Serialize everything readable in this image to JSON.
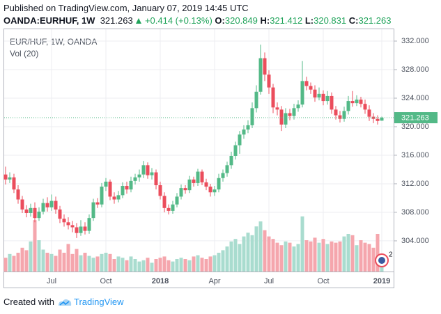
{
  "header": {
    "published": "Published on TradingView.com, January 07, 2019 14:45 UTC",
    "symbol": "OANDA:EURHUF, 1W",
    "change": "+0.414 (+0.13%)",
    "open_label": "O:",
    "high_label": "H:",
    "low_label": "L:",
    "close_label": "C:"
  },
  "footer": {
    "created": "Created with",
    "brand": "TradingView"
  },
  "chart_data": {
    "type": "candlestick",
    "title": "EUR/HUF, 1W, OANDA",
    "volume_title": "Vol (20)",
    "badge": "2",
    "up_color": "#53b987",
    "down_color": "#eb4d5c",
    "up_volume_color": "#a9dccf",
    "down_volume_color": "#f5a6ad",
    "categories": [
      null,
      null,
      null,
      null,
      null,
      null,
      null,
      null,
      null,
      null,
      null,
      "Jul",
      null,
      null,
      null,
      null,
      null,
      null,
      null,
      null,
      null,
      null,
      null,
      null,
      "Oct",
      null,
      null,
      null,
      null,
      null,
      null,
      null,
      null,
      null,
      null,
      null,
      null,
      "2018",
      null,
      null,
      null,
      null,
      null,
      null,
      null,
      null,
      null,
      null,
      null,
      null,
      "Apr",
      null,
      null,
      null,
      null,
      null,
      null,
      null,
      null,
      null,
      null,
      null,
      null,
      "Jul",
      null,
      null,
      null,
      null,
      null,
      null,
      null,
      null,
      null,
      null,
      null,
      null,
      "Oct",
      null,
      null,
      null,
      null,
      null,
      null,
      null,
      null,
      null,
      null,
      null,
      null,
      null,
      "2019"
    ],
    "open": [
      313.3,
      312.6,
      312.9,
      311.2,
      309.8,
      308.4,
      307.9,
      308.6,
      307.2,
      308.1,
      309.3,
      308.7,
      309.6,
      308.4,
      307.1,
      306.6,
      306.2,
      305.9,
      305.1,
      306.0,
      305.4,
      307.2,
      309.4,
      309.1,
      311.6,
      312.3,
      310.2,
      309.8,
      310.4,
      311.7,
      311.2,
      312.4,
      312.9,
      313.3,
      314.6,
      313.2,
      313.6,
      311.8,
      310.3,
      308.6,
      308.2,
      309.1,
      310.2,
      311.4,
      311.1,
      312.6,
      312.1,
      313.7,
      312.2,
      311.6,
      310.8,
      311.2,
      312.8,
      313.5,
      314.6,
      315.9,
      317.4,
      318.9,
      319.6,
      320.2,
      322.6,
      324.9,
      329.6,
      327.3,
      325.5,
      322.7,
      322.4,
      320.3,
      321.9,
      321.5,
      322.6,
      323.1,
      326.4,
      325.7,
      325.2,
      324.1,
      324.6,
      323.6,
      324.3,
      322.4,
      321.6,
      321.1,
      322.2,
      323.6,
      323.3,
      323.8,
      323.2,
      322.4,
      321.4,
      321.1,
      320.849
    ],
    "high": [
      314.4,
      313.6,
      313.4,
      311.8,
      310.3,
      309.0,
      309.2,
      309.4,
      308.7,
      309.9,
      310.1,
      310.5,
      310.2,
      308.9,
      307.7,
      307.3,
      306.8,
      306.5,
      306.9,
      306.6,
      307.7,
      309.9,
      310.0,
      312.1,
      312.8,
      312.6,
      310.8,
      311.0,
      312.2,
      312.3,
      313.0,
      313.4,
      314.0,
      315.2,
      315.0,
      314.2,
      314.0,
      312.3,
      310.8,
      309.1,
      309.6,
      310.7,
      311.9,
      311.8,
      313.1,
      313.0,
      314.1,
      314.0,
      312.7,
      312.0,
      311.7,
      313.4,
      314.0,
      315.1,
      316.5,
      317.9,
      319.4,
      320.2,
      320.9,
      323.4,
      325.8,
      331.5,
      330.4,
      327.9,
      326.0,
      323.4,
      322.9,
      322.6,
      322.5,
      323.2,
      323.7,
      329.2,
      327.0,
      326.2,
      325.8,
      325.5,
      325.1,
      325.0,
      324.8,
      322.9,
      322.2,
      322.8,
      324.3,
      325.0,
      324.4,
      324.2,
      323.8,
      323.0,
      321.9,
      321.6,
      321.412
    ],
    "low": [
      311.9,
      312.1,
      310.7,
      309.2,
      307.9,
      307.3,
      307.4,
      306.6,
      306.8,
      307.7,
      308.1,
      308.2,
      307.8,
      306.5,
      306.0,
      305.6,
      305.2,
      304.4,
      304.7,
      304.9,
      305.0,
      306.8,
      308.6,
      308.7,
      311.0,
      309.7,
      309.2,
      309.4,
      310.0,
      310.6,
      310.8,
      311.9,
      312.3,
      312.8,
      312.7,
      312.6,
      311.2,
      309.8,
      308.0,
      307.7,
      307.8,
      308.7,
      309.8,
      310.6,
      310.7,
      311.6,
      311.7,
      311.8,
      311.1,
      310.2,
      310.3,
      310.8,
      312.3,
      313.0,
      314.1,
      315.4,
      316.2,
      318.3,
      319.1,
      319.8,
      322.0,
      324.5,
      326.4,
      324.6,
      321.9,
      321.6,
      319.4,
      319.8,
      320.9,
      321.0,
      322.1,
      322.7,
      325.1,
      324.6,
      323.5,
      323.7,
      323.0,
      323.1,
      321.8,
      321.0,
      320.6,
      320.7,
      321.7,
      322.8,
      322.9,
      322.7,
      321.8,
      320.8,
      320.5,
      320.3,
      320.831
    ],
    "close": [
      312.6,
      312.9,
      311.2,
      309.8,
      308.4,
      307.9,
      308.6,
      307.2,
      308.1,
      309.3,
      308.7,
      309.6,
      308.4,
      307.1,
      306.6,
      306.2,
      305.9,
      305.1,
      306.0,
      305.4,
      307.2,
      309.4,
      309.1,
      311.6,
      312.3,
      310.2,
      309.8,
      310.4,
      311.7,
      311.2,
      312.4,
      312.9,
      313.3,
      314.6,
      313.2,
      313.6,
      311.8,
      310.3,
      308.6,
      308.2,
      309.1,
      310.2,
      311.4,
      311.1,
      312.6,
      312.1,
      313.7,
      312.2,
      311.6,
      310.8,
      311.2,
      312.8,
      313.5,
      314.6,
      315.9,
      317.4,
      318.9,
      319.6,
      320.2,
      322.6,
      324.9,
      329.6,
      327.3,
      325.5,
      322.7,
      322.4,
      320.3,
      321.9,
      321.5,
      322.6,
      323.1,
      326.4,
      325.7,
      325.2,
      324.1,
      324.6,
      323.6,
      324.3,
      322.4,
      321.6,
      321.1,
      322.2,
      323.6,
      323.3,
      323.8,
      323.2,
      322.4,
      321.4,
      321.1,
      320.8,
      321.263
    ],
    "volume": [
      22,
      28,
      25,
      30,
      38,
      34,
      48,
      82,
      50,
      35,
      30,
      28,
      25,
      35,
      30,
      44,
      28,
      36,
      26,
      30,
      25,
      22,
      24,
      28,
      30,
      28,
      20,
      24,
      22,
      18,
      24,
      20,
      16,
      18,
      22,
      14,
      20,
      22,
      24,
      18,
      16,
      20,
      22,
      20,
      18,
      24,
      26,
      22,
      20,
      24,
      26,
      30,
      34,
      40,
      48,
      52,
      44,
      56,
      62,
      58,
      72,
      80,
      66,
      56,
      52,
      46,
      42,
      48,
      46,
      40,
      44,
      88,
      50,
      48,
      54,
      46,
      52,
      44,
      48,
      46,
      48,
      56,
      60,
      58,
      42,
      50,
      46,
      44,
      38,
      60,
      28
    ],
    "ylim": [
      299.7,
      333.66
    ],
    "volume_ylim": [
      0,
      100
    ],
    "yticks": [
      {
        "value": 304,
        "label": "304.000"
      },
      {
        "value": 308,
        "label": "308.000"
      },
      {
        "value": 312,
        "label": "312.000"
      },
      {
        "value": 316,
        "label": "316.000"
      },
      {
        "value": 320,
        "label": "320.000"
      },
      {
        "value": 324,
        "label": "324.000"
      },
      {
        "value": 328,
        "label": "328.000"
      },
      {
        "value": 332,
        "label": "332.000"
      }
    ],
    "grid": true
  }
}
